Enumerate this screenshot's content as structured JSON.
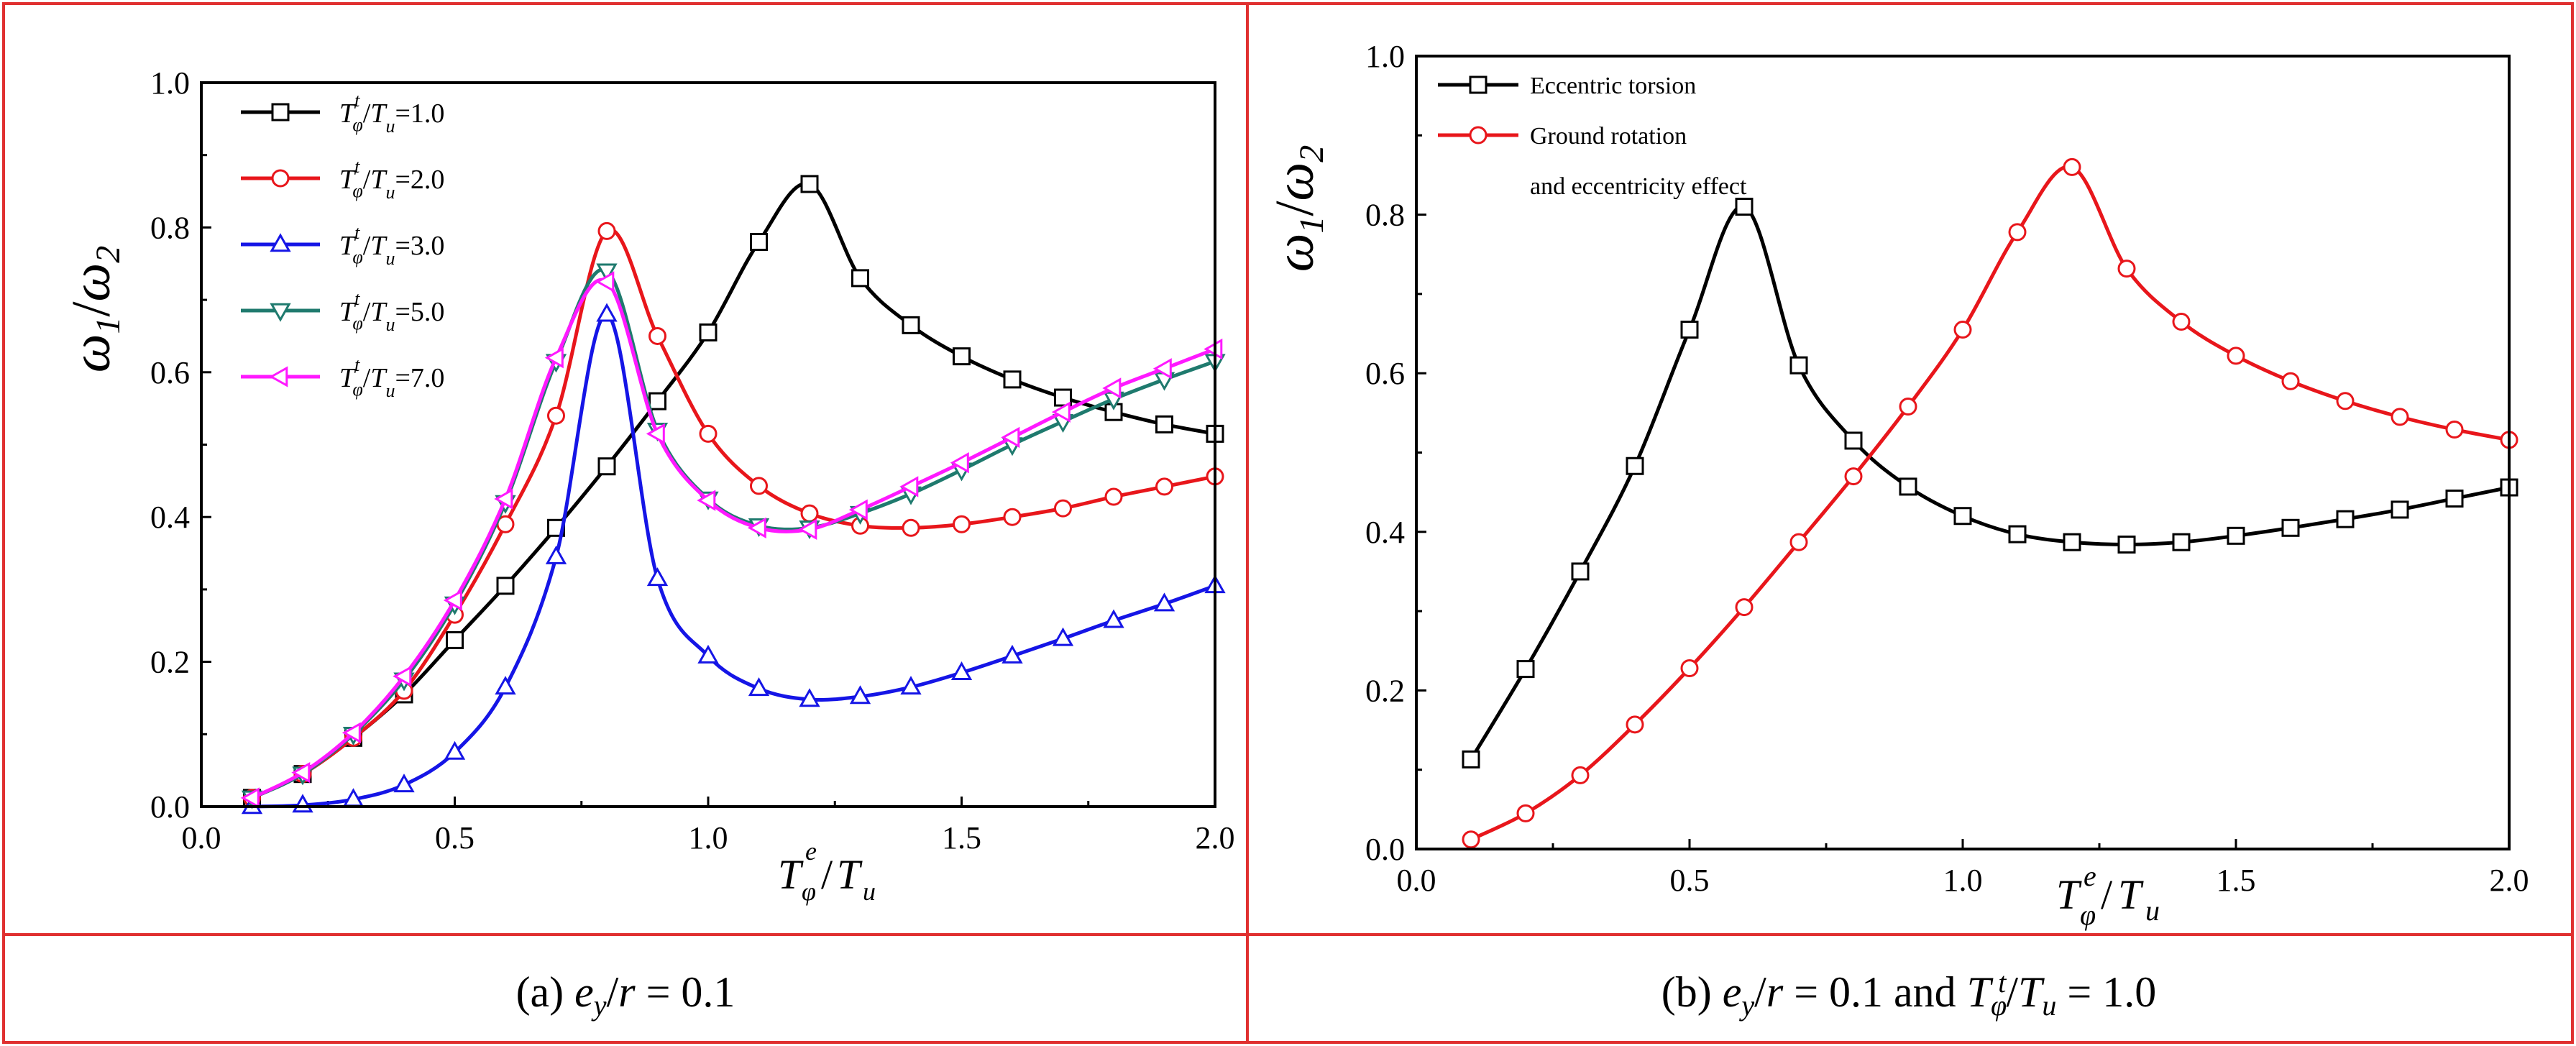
{
  "frame_color": "#e03030",
  "panels": [
    {
      "type": "line",
      "caption": {
        "prefix": "(a) ",
        "e": "e",
        "y": "y",
        "rest": "/r = 0.1",
        "ey": "e",
        "sub": "y",
        "tail": "/",
        "r": "r",
        "eq": " = 0.1"
      },
      "ylabel": {
        "w": "ω",
        "s1": "1",
        "slash": "/",
        "w2": "ω",
        "s2": "2"
      },
      "xlabel": {
        "T": "T",
        "sup": "e",
        "sub": "φ",
        "slash": "/",
        "T2": "T",
        "sub2": "u"
      },
      "xlim": [
        0.0,
        2.0
      ],
      "ylim": [
        0.0,
        1.0
      ],
      "xticks": [
        "0.0",
        "0.5",
        "1.0",
        "1.5",
        "2.0"
      ],
      "yticks": [
        "0.0",
        "0.2",
        "0.4",
        "0.6",
        "0.8",
        "1.0"
      ],
      "x": [
        0.1,
        0.2,
        0.3,
        0.4,
        0.5,
        0.6,
        0.7,
        0.8,
        0.9,
        1.0,
        1.1,
        1.2,
        1.3,
        1.4,
        1.5,
        1.6,
        1.7,
        1.8,
        1.9,
        2.0
      ],
      "series": [
        {
          "name": "Tφt/Tu=1.0",
          "label": {
            "T": "T",
            "sup": "t",
            "sub": "φ",
            "slash": "/",
            "T2": "T",
            "sub2": "u",
            "val": "=1.0"
          },
          "color": "#000000",
          "marker": "square",
          "values": [
            0.012,
            0.045,
            0.095,
            0.155,
            0.23,
            0.305,
            0.385,
            0.47,
            0.56,
            0.655,
            0.78,
            0.86,
            0.73,
            0.665,
            0.622,
            0.59,
            0.565,
            0.545,
            0.528,
            0.515
          ]
        },
        {
          "name": "Tφt/Tu=2.0",
          "label": {
            "T": "T",
            "sup": "t",
            "sub": "φ",
            "slash": "/",
            "T2": "T",
            "sub2": "u",
            "val": "=2.0"
          },
          "color": "#e8161b",
          "marker": "circle",
          "values": [
            0.012,
            0.045,
            0.095,
            0.16,
            0.265,
            0.39,
            0.54,
            0.795,
            0.65,
            0.515,
            0.443,
            0.405,
            0.388,
            0.385,
            0.39,
            0.4,
            0.412,
            0.428,
            0.442,
            0.456
          ]
        },
        {
          "name": "Tφt/Tu=3.0",
          "label": {
            "T": "T",
            "sup": "t",
            "sub": "φ",
            "slash": "/",
            "T2": "T",
            "sub2": "u",
            "val": "=3.0"
          },
          "color": "#1515e6",
          "marker": "triangle-up",
          "values": [
            0.0,
            0.002,
            0.01,
            0.03,
            0.075,
            0.165,
            0.345,
            0.68,
            0.315,
            0.208,
            0.163,
            0.148,
            0.152,
            0.165,
            0.185,
            0.208,
            0.232,
            0.257,
            0.28,
            0.305
          ]
        },
        {
          "name": "Tφt/Tu=5.0",
          "label": {
            "T": "T",
            "sup": "t",
            "sub": "φ",
            "slash": "/",
            "T2": "T",
            "sub2": "u",
            "val": "=5.0"
          },
          "color": "#1f7a6e",
          "marker": "triangle-down",
          "values": [
            0.012,
            0.045,
            0.1,
            0.175,
            0.28,
            0.42,
            0.615,
            0.74,
            0.52,
            0.425,
            0.388,
            0.385,
            0.405,
            0.432,
            0.465,
            0.5,
            0.532,
            0.563,
            0.59,
            0.615
          ]
        },
        {
          "name": "Tφt/Tu=7.0",
          "label": {
            "T": "T",
            "sup": "t",
            "sub": "φ",
            "slash": "/",
            "T2": "T",
            "sub2": "u",
            "val": "=7.0"
          },
          "color": "#ff19ff",
          "marker": "triangle-left",
          "values": [
            0.012,
            0.047,
            0.102,
            0.18,
            0.285,
            0.425,
            0.62,
            0.725,
            0.515,
            0.423,
            0.385,
            0.383,
            0.41,
            0.442,
            0.475,
            0.51,
            0.545,
            0.578,
            0.605,
            0.632
          ]
        }
      ],
      "legend": "top-left"
    },
    {
      "type": "line",
      "caption": {
        "prefix": "(b) ",
        "ey": "e",
        "sub": "y",
        "tail": "/",
        "r": "r",
        "eq": " = 0.1 and ",
        "T": "T",
        "Tsub": "φ",
        "Tsup": "t",
        "slash": "/",
        "T2": "T",
        "T2sub": "u",
        "end": " = 1.0"
      },
      "ylabel": {
        "w": "ω",
        "s1": "1",
        "slash": "/",
        "w2": "ω",
        "s2": "2"
      },
      "xlabel": {
        "T": "T",
        "sup": "e",
        "sub": "φ",
        "slash": "/",
        "T2": "T",
        "sub2": "u"
      },
      "xlim": [
        0.0,
        2.0
      ],
      "ylim": [
        0.0,
        1.0
      ],
      "xticks": [
        "0.0",
        "0.5",
        "1.0",
        "1.5",
        "2.0"
      ],
      "yticks": [
        "0.0",
        "0.2",
        "0.4",
        "0.6",
        "0.8",
        "1.0"
      ],
      "x": [
        0.1,
        0.2,
        0.3,
        0.4,
        0.5,
        0.6,
        0.7,
        0.8,
        0.9,
        1.0,
        1.1,
        1.2,
        1.3,
        1.4,
        1.5,
        1.6,
        1.7,
        1.8,
        1.9,
        2.0
      ],
      "series": [
        {
          "name": "Eccentric torsion",
          "label_lines": [
            "Eccentric torsion"
          ],
          "color": "#000000",
          "marker": "square",
          "values": [
            0.113,
            0.227,
            0.35,
            0.483,
            0.655,
            0.81,
            0.61,
            0.515,
            0.457,
            0.42,
            0.397,
            0.387,
            0.384,
            0.387,
            0.395,
            0.405,
            0.416,
            0.428,
            0.442,
            0.456
          ]
        },
        {
          "name": "Ground rotation and eccentricity effect",
          "label_lines": [
            "Ground rotation",
            "and eccentricity effect"
          ],
          "color": "#e8161b",
          "marker": "circle",
          "values": [
            0.012,
            0.045,
            0.093,
            0.157,
            0.228,
            0.305,
            0.387,
            0.47,
            0.558,
            0.655,
            0.778,
            0.86,
            0.732,
            0.665,
            0.622,
            0.59,
            0.565,
            0.545,
            0.529,
            0.516
          ]
        }
      ],
      "legend": "top-left"
    }
  ]
}
